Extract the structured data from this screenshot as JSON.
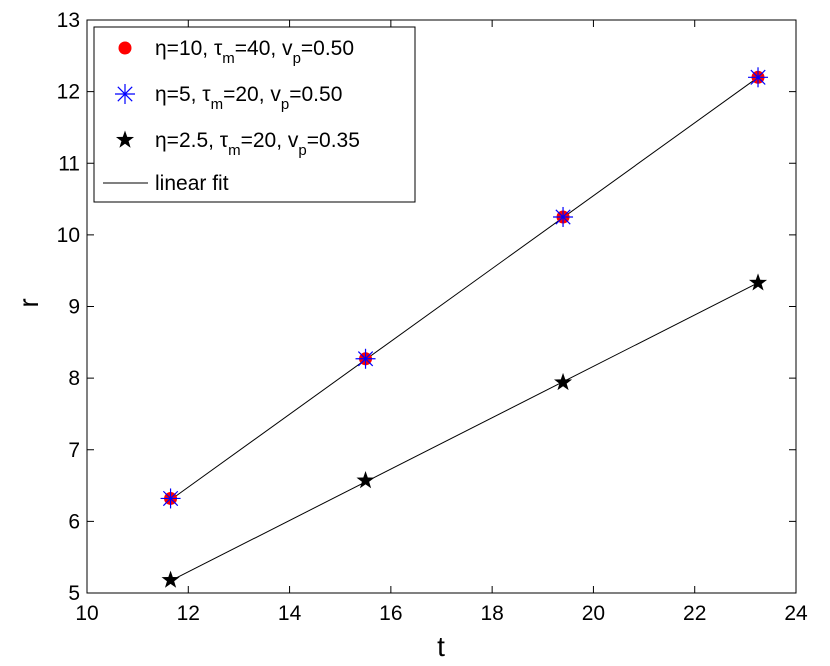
{
  "chart_data": {
    "type": "scatter",
    "xlabel": "t",
    "ylabel": "r",
    "xlim": [
      10,
      24
    ],
    "ylim": [
      5,
      13
    ],
    "xticks": [
      10,
      12,
      14,
      16,
      18,
      20,
      22,
      24
    ],
    "yticks": [
      5,
      6,
      7,
      8,
      9,
      10,
      11,
      12,
      13
    ],
    "x": [
      11.65,
      15.5,
      19.4,
      23.25
    ],
    "grid": false,
    "legend_position": "top-left",
    "series": [
      {
        "name": "η=10,  τm=40, vp=0.50",
        "legend": {
          "a": "η=10,  τ",
          "sub1": "m",
          "b": "=40, v",
          "sub2": "p",
          "c": "=0.50"
        },
        "marker": "circle",
        "color": "#ff0000",
        "values": [
          6.32,
          8.27,
          10.25,
          12.2
        ]
      },
      {
        "name": "η=5,   τm=20, vp=0.50",
        "legend": {
          "a": "η=5,   τ",
          "sub1": "m",
          "b": "=20, v",
          "sub2": "p",
          "c": "=0.50"
        },
        "marker": "asterisk",
        "color": "#0000ff",
        "values": [
          6.32,
          8.27,
          10.25,
          12.2
        ]
      },
      {
        "name": "η=2.5, τm=20, vp=0.35",
        "legend": {
          "a": "η=2.5, τ",
          "sub1": "m",
          "b": "=20, v",
          "sub2": "p",
          "c": "=0.35"
        },
        "marker": "star",
        "color": "#000000",
        "values": [
          5.18,
          6.57,
          7.94,
          9.33
        ]
      }
    ],
    "fit_label": "linear fit",
    "fits": [
      {
        "x": [
          11.65,
          23.25
        ],
        "y": [
          6.3,
          12.2
        ]
      },
      {
        "x": [
          11.65,
          23.25
        ],
        "y": [
          5.17,
          9.33
        ]
      }
    ]
  }
}
